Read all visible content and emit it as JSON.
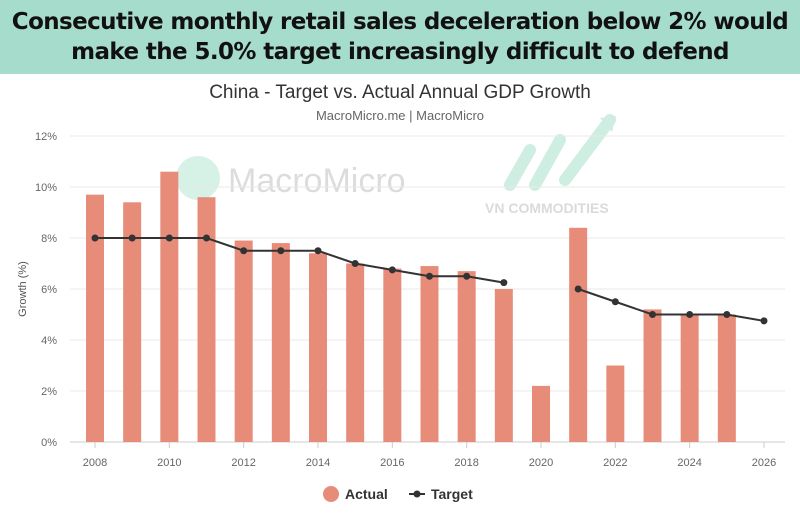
{
  "banner": {
    "line1": "Consecutive monthly retail sales deceleration below 2% would",
    "line2": "make the 5.0% target increasingly difficult to defend"
  },
  "watermarks": [
    "MacroMicro",
    "VN COMMODITIES"
  ],
  "colors": {
    "actual": "#e88c7a",
    "target": "#333333",
    "banner": "#a6dccb"
  },
  "chart_data": {
    "type": "bar",
    "title": "China - Target vs. Actual Annual GDP Growth",
    "subtitle": "MacroMicro.me | MacroMicro",
    "ylabel": "Growth (%)",
    "ylim": [
      0,
      12
    ],
    "yticks": [
      "0%",
      "2%",
      "4%",
      "6%",
      "8%",
      "10%",
      "12%"
    ],
    "xticks": [
      "2008",
      "2010",
      "2012",
      "2014",
      "2016",
      "2018",
      "2020",
      "2022",
      "2024",
      "2026"
    ],
    "grid": true,
    "legend_placement": "bottom",
    "categories": [
      2008,
      2009,
      2010,
      2011,
      2012,
      2013,
      2014,
      2015,
      2016,
      2017,
      2018,
      2019,
      2020,
      2021,
      2022,
      2023,
      2024,
      2025,
      2026
    ],
    "series": [
      {
        "name": "Actual",
        "type": "bar",
        "values": [
          9.7,
          9.4,
          10.6,
          9.6,
          7.9,
          7.8,
          7.4,
          7.0,
          6.8,
          6.9,
          6.7,
          6.0,
          2.2,
          8.4,
          3.0,
          5.2,
          5.0,
          5.0,
          null
        ]
      },
      {
        "name": "Target",
        "type": "line",
        "values": [
          8,
          8,
          8,
          8,
          7.5,
          7.5,
          7.5,
          7.0,
          6.75,
          6.5,
          6.5,
          6.25,
          null,
          6.0,
          5.5,
          5.0,
          5.0,
          5.0,
          4.75
        ]
      }
    ]
  }
}
